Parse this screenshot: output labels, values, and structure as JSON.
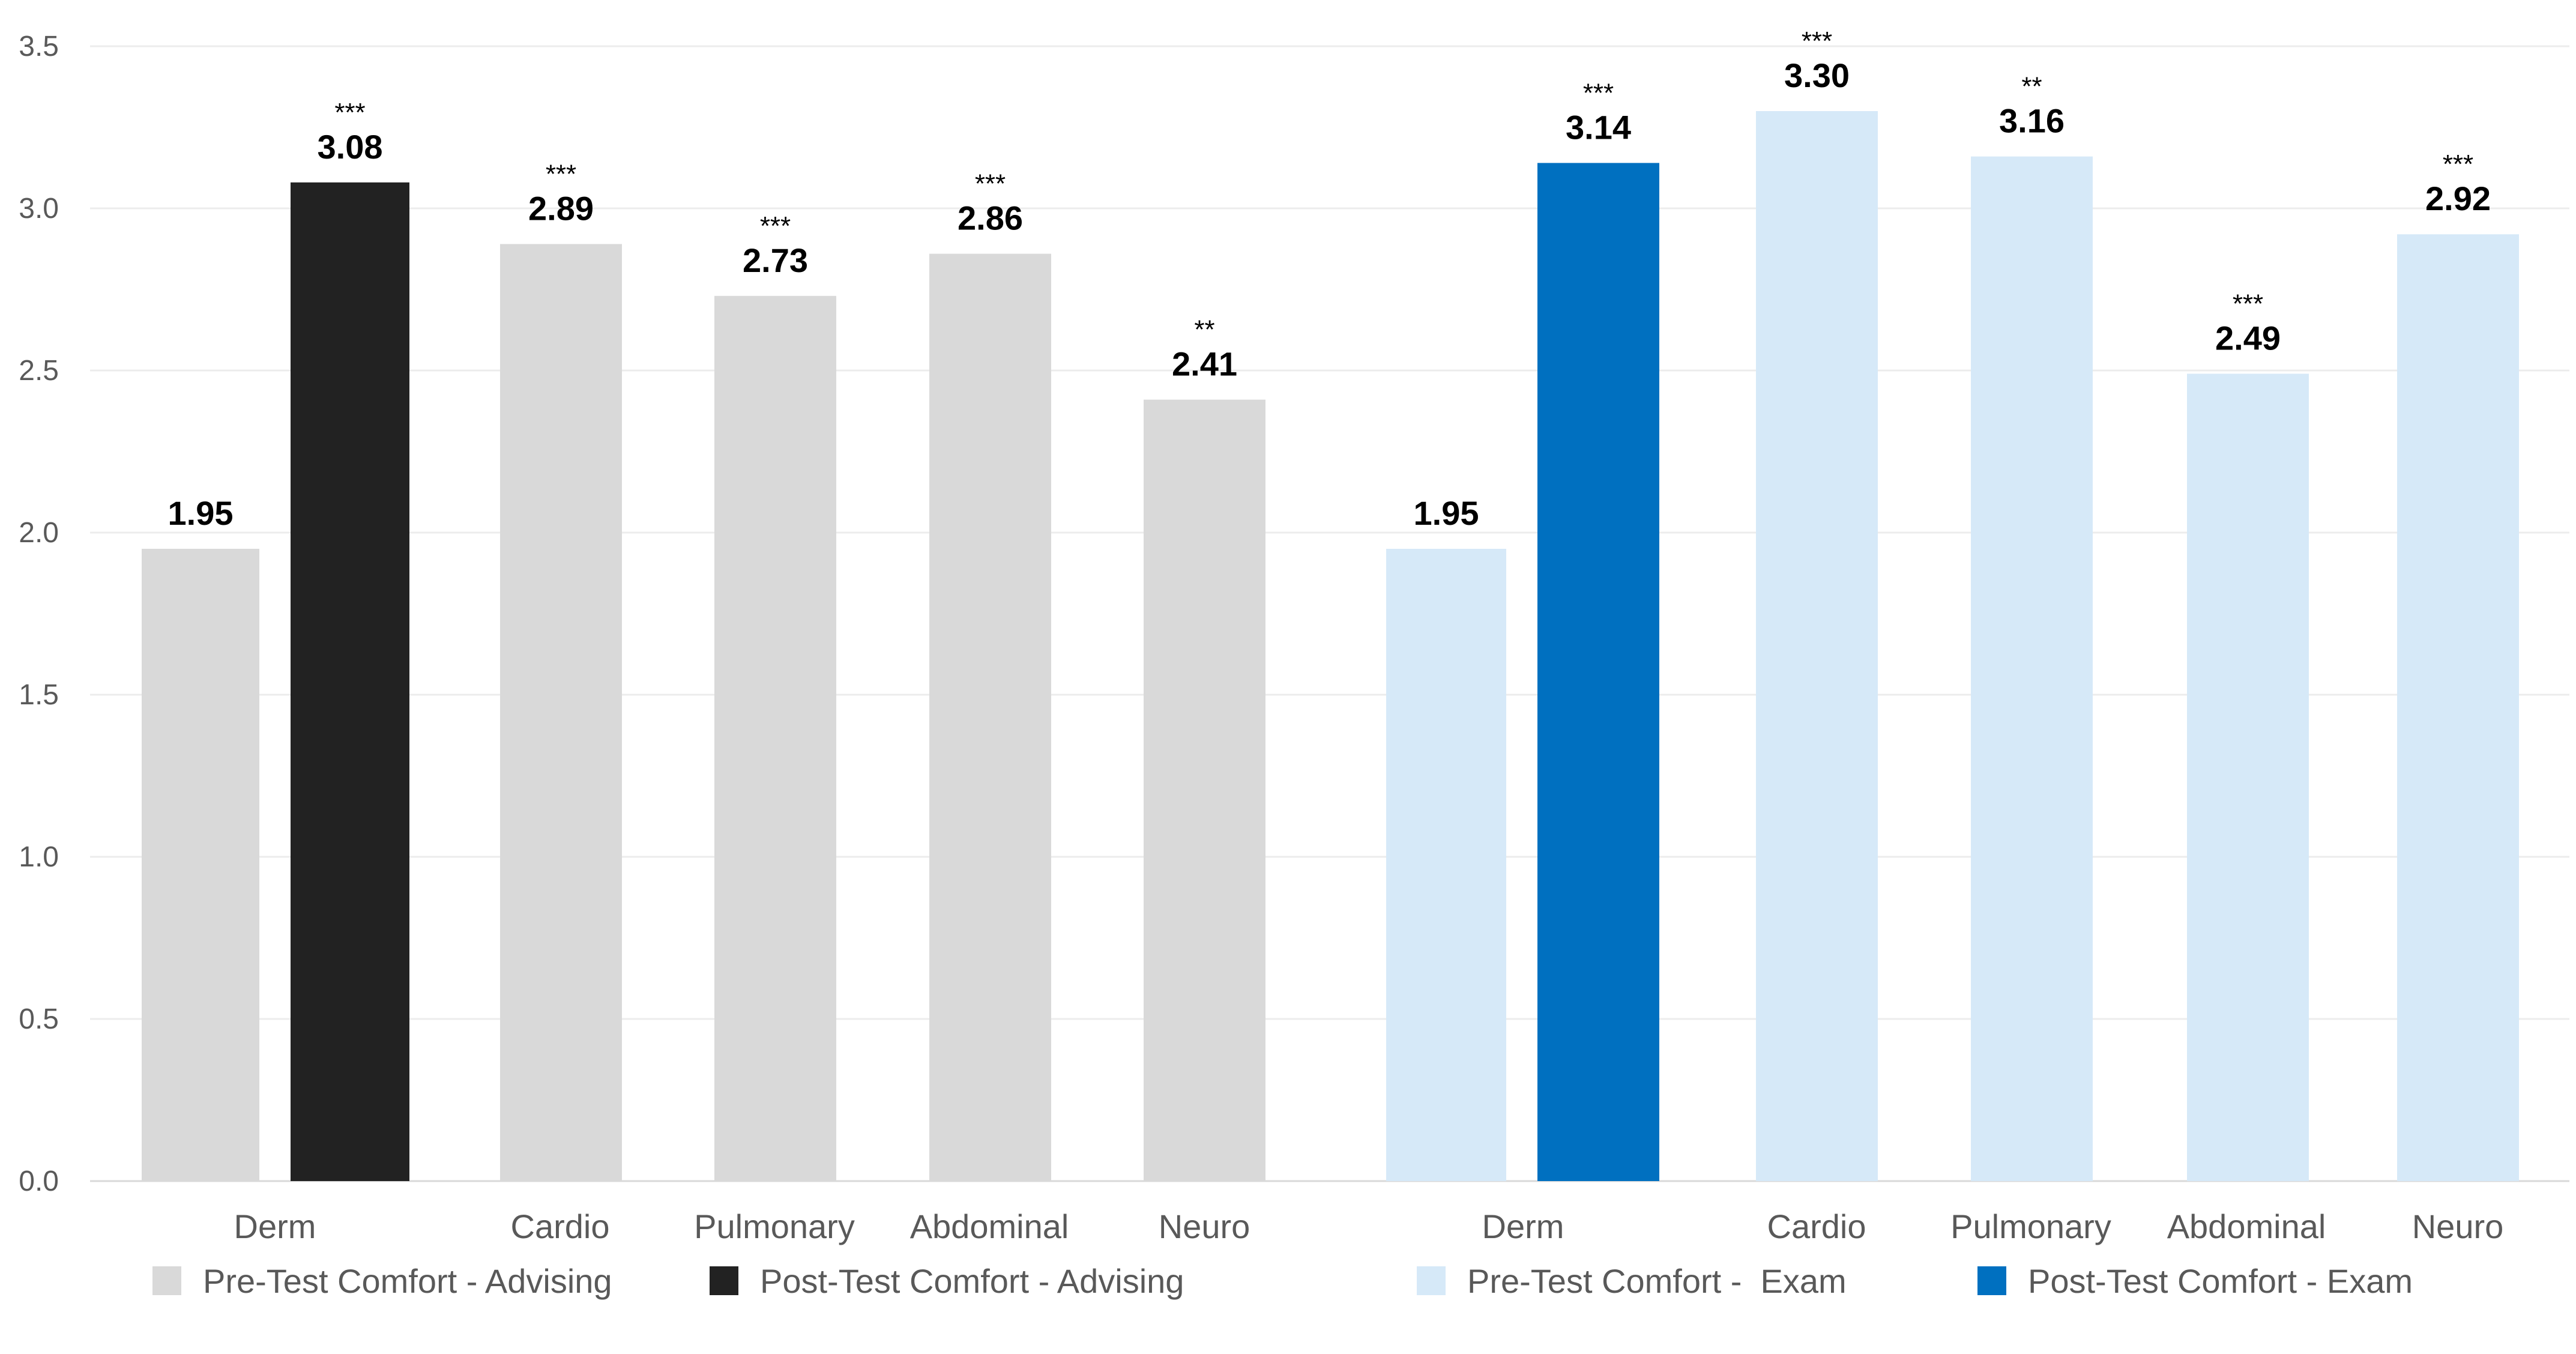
{
  "chart_data": {
    "type": "bar",
    "title": "",
    "xlabel": "",
    "ylabel": "",
    "ylim": [
      0,
      3.5
    ],
    "yticks": [
      "0.0",
      "0.5",
      "1.0",
      "1.5",
      "2.0",
      "2.5",
      "3.0",
      "3.5"
    ],
    "grid": true,
    "legend_position": "bottom",
    "groups": [
      {
        "name": "Advising",
        "bars": [
          {
            "category": "Derm",
            "series": "Pre-Test Comfort - Advising",
            "value": 1.95,
            "label": "1.95",
            "sig": ""
          },
          {
            "category": "",
            "series": "Post-Test Comfort - Advising",
            "value": 3.08,
            "label": "3.08",
            "sig": "***"
          },
          {
            "category": "Cardio",
            "series": "Pre-Test Comfort - Advising",
            "value": 2.89,
            "label": "2.89",
            "sig": "***"
          },
          {
            "category": "Pulmonary",
            "series": "Pre-Test Comfort - Advising",
            "value": 2.73,
            "label": "2.73",
            "sig": "***"
          },
          {
            "category": "Abdominal",
            "series": "Pre-Test Comfort - Advising",
            "value": 2.86,
            "label": "2.86",
            "sig": "***"
          },
          {
            "category": "Neuro",
            "series": "Pre-Test Comfort - Advising",
            "value": 2.41,
            "label": "2.41",
            "sig": "**"
          }
        ]
      },
      {
        "name": "Exam",
        "bars": [
          {
            "category": "Derm",
            "series": "Pre-Test Comfort - Exam",
            "value": 1.95,
            "label": "1.95",
            "sig": ""
          },
          {
            "category": "",
            "series": "Post-Test Comfort - Exam",
            "value": 3.14,
            "label": "3.14",
            "sig": "***"
          },
          {
            "category": "Cardio",
            "series": "Pre-Test Comfort - Exam",
            "value": 3.3,
            "label": "3.30",
            "sig": "***"
          },
          {
            "category": "Pulmonary",
            "series": "Pre-Test Comfort - Exam",
            "value": 3.16,
            "label": "3.16",
            "sig": "**"
          },
          {
            "category": "Abdominal",
            "series": "Pre-Test Comfort - Exam",
            "value": 2.49,
            "label": "2.49",
            "sig": "***"
          },
          {
            "category": "Neuro",
            "series": "Pre-Test Comfort - Exam",
            "value": 2.92,
            "label": "2.92",
            "sig": "***"
          }
        ]
      }
    ],
    "series": [
      {
        "name": "Pre-Test Comfort - Advising",
        "label": "Pre-Test Comfort - Advising",
        "color": "#d9d9d9"
      },
      {
        "name": "Post-Test Comfort - Advising",
        "label": "Post-Test Comfort - Advising",
        "color": "#222222"
      },
      {
        "name": "Pre-Test Comfort - Exam",
        "label": "Pre-Test Comfort -  Exam",
        "color": "#d6e9f8"
      },
      {
        "name": "Post-Test Comfort - Exam",
        "label": "Post-Test Comfort - Exam",
        "color": "#0070c0"
      }
    ]
  }
}
